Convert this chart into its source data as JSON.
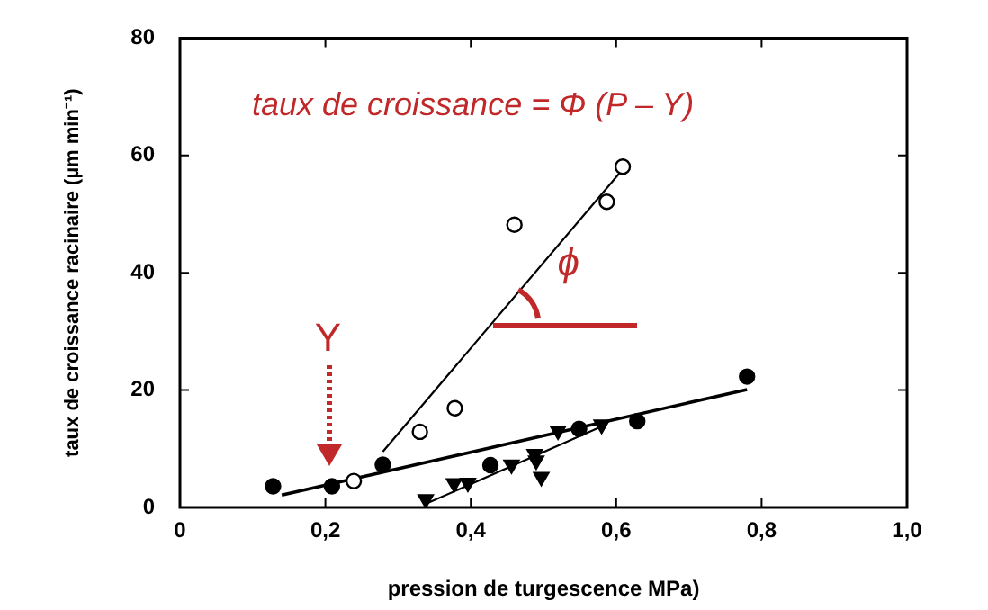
{
  "chart_data": {
    "type": "scatter",
    "xlabel": "pression de turgescence MPa)",
    "ylabel": "taux de croissance racinaire (µm min⁻¹)",
    "xlim": [
      0,
      1.0
    ],
    "xticks": [
      {
        "value": 0,
        "label": "0"
      },
      {
        "value": 0.2,
        "label": "0,2"
      },
      {
        "value": 0.4,
        "label": "0,4"
      },
      {
        "value": 0.6,
        "label": "0,6"
      },
      {
        "value": 0.8,
        "label": "0,8"
      },
      {
        "value": 1.0,
        "label": "1,0"
      }
    ],
    "ylim": [
      0,
      80
    ],
    "yticks": [
      0,
      20,
      40,
      60,
      80
    ],
    "grid": false,
    "legend": false,
    "marker": "circle",
    "annotations": [
      "taux de croissance = Φ (P – Y)",
      "Y",
      {
        "text": "ϕ",
        "x": 0.43,
        "y": 31
      }
    ],
    "series": [
      {
        "type": "scatter",
        "color": "#000000",
        "x": [
          0.239,
          0.33,
          0.378,
          0.46,
          0.587,
          0.609
        ],
        "values": [
          4.5,
          12.9,
          16.9,
          48.2,
          52.1,
          58.1
        ]
      },
      {
        "type": "scatter",
        "color": "#000000",
        "x": [
          0.128,
          0.209,
          0.279,
          0.427,
          0.549,
          0.629,
          0.78
        ],
        "values": [
          3.6,
          3.6,
          7.3,
          7.2,
          13.4,
          14.7,
          22.3
        ]
      },
      {
        "type": "scatter",
        "marker": "triangle",
        "color": "#000000",
        "x": [
          0.338,
          0.377,
          0.396,
          0.456,
          0.488,
          0.49,
          0.497,
          0.52,
          0.58
        ],
        "values": [
          1.4,
          4.1,
          4.2,
          7.3,
          9.1,
          8,
          5.2,
          13.1,
          14.1
        ]
      },
      {
        "type": "line",
        "marker": "none",
        "color": "#000000",
        "x": [
          0.279,
          0.604
        ],
        "values": [
          9.5,
          56.9
        ]
      },
      {
        "type": "line",
        "marker": "none",
        "color": "#000000",
        "x": [
          0.14,
          0.78
        ],
        "values": [
          2.1,
          20.1
        ]
      },
      {
        "type": "line",
        "marker": "none",
        "color": "#000000",
        "x": [
          0.338,
          0.58
        ],
        "values": [
          0.6,
          13.8
        ]
      }
    ]
  }
}
